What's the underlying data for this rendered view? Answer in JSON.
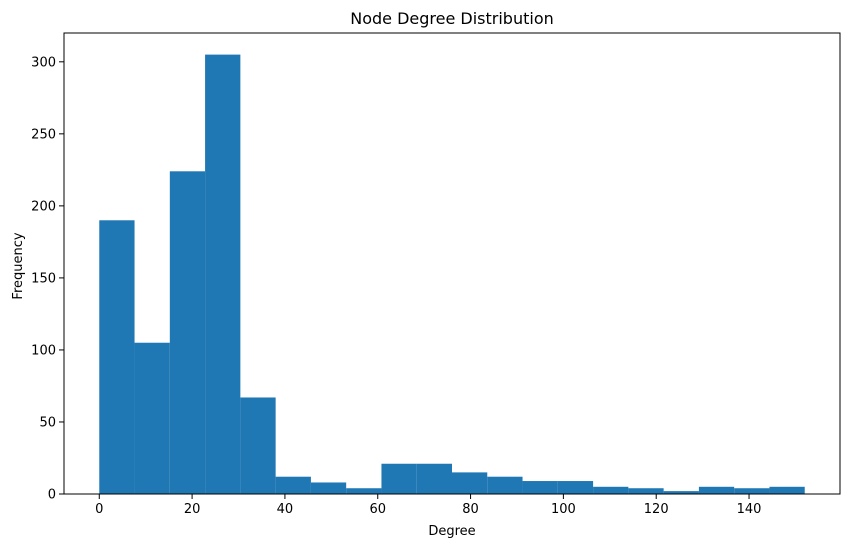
{
  "chart_data": {
    "type": "bar",
    "title": "Node Degree Distribution",
    "xlabel": "Degree",
    "ylabel": "Frequency",
    "color": "#1f77b4",
    "xlim": [
      -7.6,
      159.6
    ],
    "ylim": [
      0,
      320
    ],
    "xticks": [
      0,
      20,
      40,
      60,
      80,
      100,
      120,
      140
    ],
    "yticks": [
      0,
      50,
      100,
      150,
      200,
      250,
      300
    ],
    "bins": [
      {
        "start": 0.0,
        "end": 7.6,
        "count": 190
      },
      {
        "start": 7.6,
        "end": 15.2,
        "count": 105
      },
      {
        "start": 15.2,
        "end": 22.8,
        "count": 224
      },
      {
        "start": 22.8,
        "end": 30.4,
        "count": 305
      },
      {
        "start": 30.4,
        "end": 38.0,
        "count": 67
      },
      {
        "start": 38.0,
        "end": 45.6,
        "count": 12
      },
      {
        "start": 45.6,
        "end": 53.2,
        "count": 8
      },
      {
        "start": 53.2,
        "end": 60.8,
        "count": 4
      },
      {
        "start": 60.8,
        "end": 68.4,
        "count": 21
      },
      {
        "start": 68.4,
        "end": 76.0,
        "count": 21
      },
      {
        "start": 76.0,
        "end": 83.6,
        "count": 15
      },
      {
        "start": 83.6,
        "end": 91.2,
        "count": 12
      },
      {
        "start": 91.2,
        "end": 98.8,
        "count": 9
      },
      {
        "start": 98.8,
        "end": 106.4,
        "count": 9
      },
      {
        "start": 106.4,
        "end": 114.0,
        "count": 5
      },
      {
        "start": 114.0,
        "end": 121.6,
        "count": 4
      },
      {
        "start": 121.6,
        "end": 129.2,
        "count": 2
      },
      {
        "start": 129.2,
        "end": 136.8,
        "count": 5
      },
      {
        "start": 136.8,
        "end": 144.4,
        "count": 4
      },
      {
        "start": 144.4,
        "end": 152.0,
        "count": 5
      }
    ],
    "grid": false,
    "legend": "none"
  }
}
